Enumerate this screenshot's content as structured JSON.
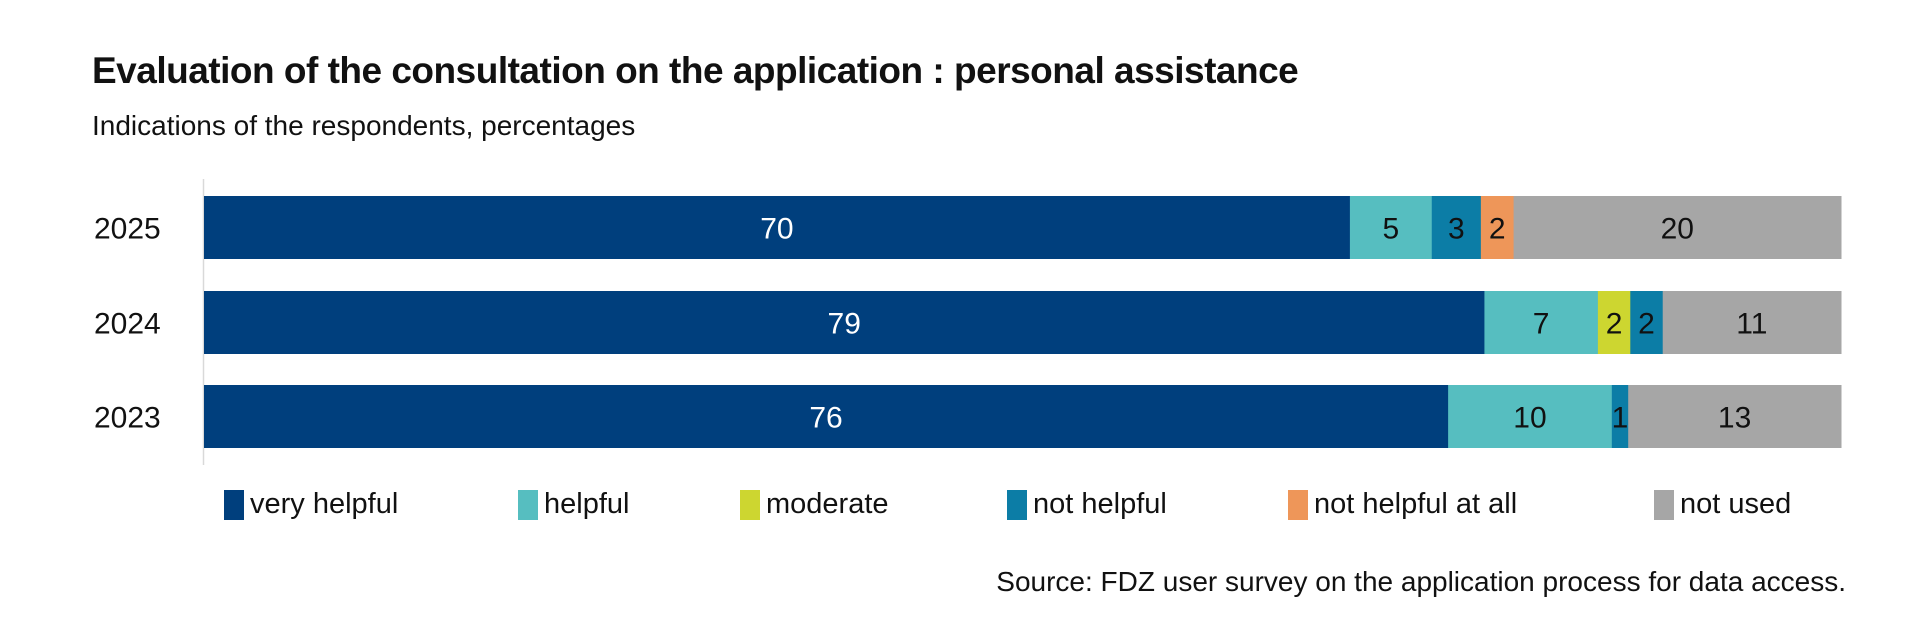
{
  "chart_data": {
    "type": "bar",
    "orientation": "horizontal",
    "stacked": true,
    "title": "Evaluation of the consultation on the application : personal assistance",
    "subtitle": "Indications of the respondents, percentages",
    "source": "Source: FDZ user survey on the application process for data access.",
    "categories": [
      "2025",
      "2024",
      "2023"
    ],
    "series": [
      {
        "name": "very helpful",
        "color": "#003F7D",
        "label_color": "#ffffff",
        "values": [
          70,
          79,
          76
        ]
      },
      {
        "name": "helpful",
        "color": "#56BEC0",
        "label_color": "#111111",
        "values": [
          5,
          7,
          10
        ]
      },
      {
        "name": "moderate",
        "color": "#CDD630",
        "label_color": "#111111",
        "values": [
          0,
          2,
          0
        ]
      },
      {
        "name": "not helpful",
        "color": "#0C7DA6",
        "label_color": "#111111",
        "values": [
          3,
          2,
          1
        ]
      },
      {
        "name": "not helpful at all",
        "color": "#EE9659",
        "label_color": "#111111",
        "values": [
          2,
          0,
          0
        ]
      },
      {
        "name": "not used",
        "color": "#A6A6A6",
        "label_color": "#111111",
        "values": [
          20,
          11,
          13
        ]
      }
    ],
    "legend": "bottom",
    "grid": false,
    "xaxis_visible": false
  }
}
